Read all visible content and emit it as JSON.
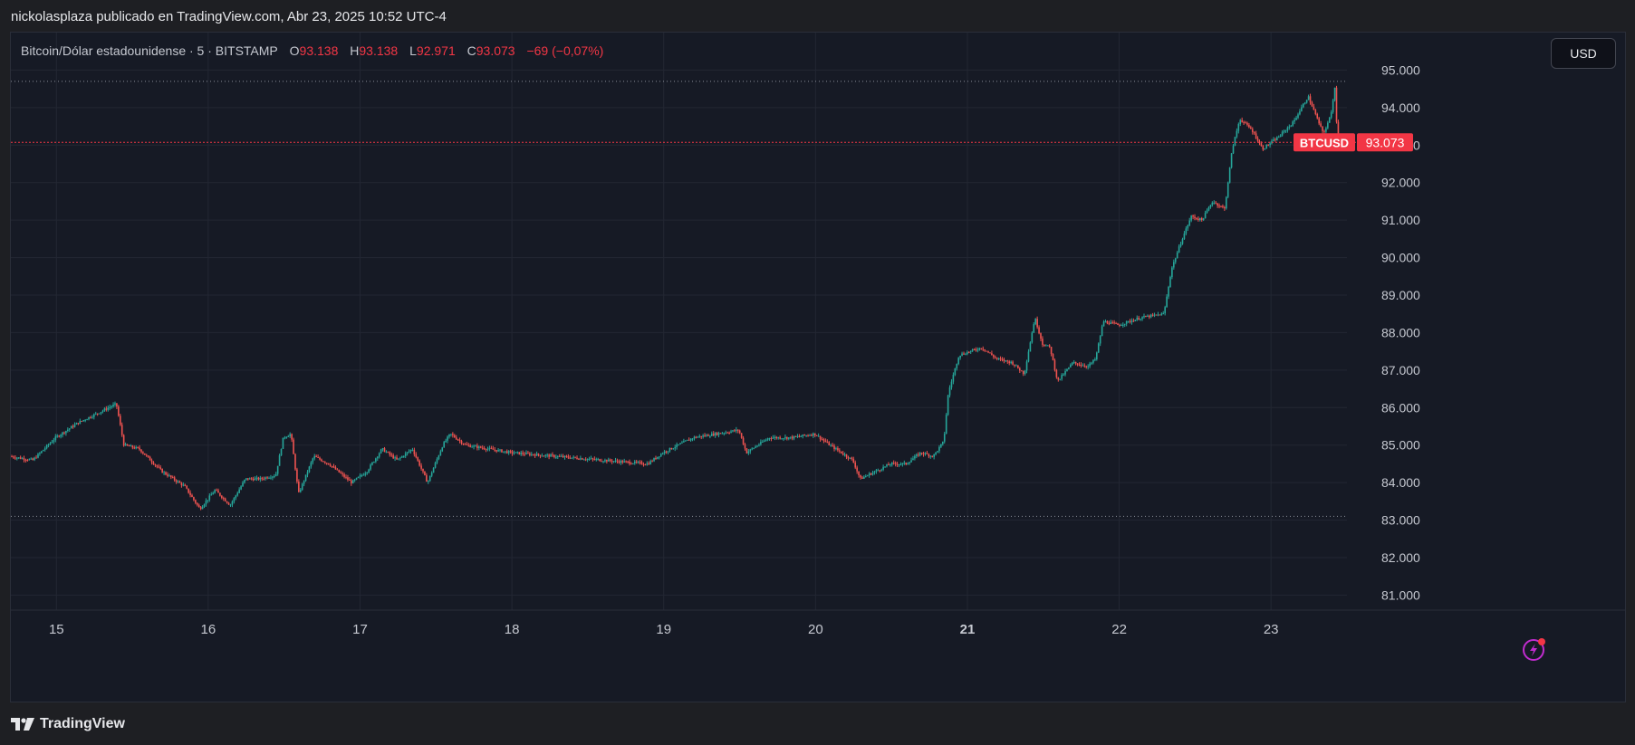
{
  "header": {
    "publish_line": "nickolasplaza publicado en TradingView.com, Abr 23, 2025 10:52 UTC-4"
  },
  "legend": {
    "symbol": "Bitcoin/Dólar estadounidense · 5 · BITSTAMP",
    "open_label": "O",
    "open": "93.138",
    "high_label": "H",
    "high": "93.138",
    "low_label": "L",
    "low": "92.971",
    "close_label": "C",
    "close": "93.073",
    "change": "−69 (−0,07%)"
  },
  "toolbar": {
    "currency_label": "USD",
    "alert_icon": "lightning-icon"
  },
  "footer": {
    "brand": "TradingView",
    "logo_icon": "tradingview-logo-icon"
  },
  "colors": {
    "up": "#26a69a",
    "down": "#ef5350",
    "price_line": "#f23645",
    "background": "#161a25",
    "grid": "#232733",
    "text": "#c5c8d0"
  },
  "chart_data": {
    "type": "candlestick",
    "symbol": "BTCUSD",
    "interval": "5",
    "exchange": "BITSTAMP",
    "x_ticks": [
      {
        "label": "15",
        "day": 15,
        "bold": false
      },
      {
        "label": "16",
        "day": 16,
        "bold": false
      },
      {
        "label": "17",
        "day": 17,
        "bold": false
      },
      {
        "label": "18",
        "day": 18,
        "bold": false
      },
      {
        "label": "19",
        "day": 19,
        "bold": false
      },
      {
        "label": "20",
        "day": 20,
        "bold": false
      },
      {
        "label": "21",
        "day": 21,
        "bold": true
      },
      {
        "label": "22",
        "day": 22,
        "bold": false
      },
      {
        "label": "23",
        "day": 23,
        "bold": false
      }
    ],
    "y_ticks": [
      {
        "label": "95.000",
        "value": 95000
      },
      {
        "label": "94.000",
        "value": 94000
      },
      {
        "label": "93.000",
        "value": 93000
      },
      {
        "label": "92.000",
        "value": 92000
      },
      {
        "label": "91.000",
        "value": 91000
      },
      {
        "label": "90.000",
        "value": 90000
      },
      {
        "label": "89.000",
        "value": 89000
      },
      {
        "label": "88.000",
        "value": 88000
      },
      {
        "label": "87.000",
        "value": 87000
      },
      {
        "label": "86.000",
        "value": 86000
      },
      {
        "label": "85.000",
        "value": 85000
      },
      {
        "label": "84.000",
        "value": 84000
      },
      {
        "label": "83.000",
        "value": 83000
      },
      {
        "label": "82.000",
        "value": 82000
      },
      {
        "label": "81.000",
        "value": 81000
      }
    ],
    "ylim": [
      80600,
      96000
    ],
    "xlim": [
      14.7,
      23.5
    ],
    "grid": true,
    "range_high_line": 94700,
    "range_low_line": 83100,
    "last_price": 93073,
    "last_price_label": "93.073",
    "symbol_tag": "BTCUSD",
    "price_path": [
      [
        14.7,
        84700
      ],
      [
        14.85,
        84600
      ],
      [
        15.0,
        85200
      ],
      [
        15.15,
        85600
      ],
      [
        15.3,
        85900
      ],
      [
        15.4,
        86100
      ],
      [
        15.45,
        85000
      ],
      [
        15.55,
        84900
      ],
      [
        15.7,
        84300
      ],
      [
        15.85,
        83900
      ],
      [
        15.95,
        83300
      ],
      [
        16.05,
        83800
      ],
      [
        16.15,
        83400
      ],
      [
        16.25,
        84100
      ],
      [
        16.35,
        84100
      ],
      [
        16.45,
        84200
      ],
      [
        16.5,
        85200
      ],
      [
        16.55,
        85300
      ],
      [
        16.6,
        83700
      ],
      [
        16.7,
        84700
      ],
      [
        16.8,
        84500
      ],
      [
        16.95,
        84000
      ],
      [
        17.05,
        84300
      ],
      [
        17.15,
        84900
      ],
      [
        17.25,
        84600
      ],
      [
        17.35,
        84900
      ],
      [
        17.45,
        84000
      ],
      [
        17.55,
        85000
      ],
      [
        17.6,
        85300
      ],
      [
        17.7,
        85000
      ],
      [
        17.85,
        84900
      ],
      [
        18.0,
        84800
      ],
      [
        18.3,
        84700
      ],
      [
        18.6,
        84600
      ],
      [
        18.9,
        84500
      ],
      [
        19.0,
        84800
      ],
      [
        19.1,
        85000
      ],
      [
        19.2,
        85200
      ],
      [
        19.35,
        85300
      ],
      [
        19.5,
        85400
      ],
      [
        19.55,
        84800
      ],
      [
        19.7,
        85200
      ],
      [
        19.85,
        85200
      ],
      [
        20.0,
        85300
      ],
      [
        20.1,
        85000
      ],
      [
        20.25,
        84600
      ],
      [
        20.3,
        84100
      ],
      [
        20.4,
        84300
      ],
      [
        20.5,
        84500
      ],
      [
        20.6,
        84500
      ],
      [
        20.7,
        84800
      ],
      [
        20.78,
        84700
      ],
      [
        20.85,
        85100
      ],
      [
        20.88,
        86400
      ],
      [
        20.95,
        87400
      ],
      [
        21.1,
        87600
      ],
      [
        21.2,
        87300
      ],
      [
        21.3,
        87200
      ],
      [
        21.38,
        86900
      ],
      [
        21.45,
        88400
      ],
      [
        21.5,
        87700
      ],
      [
        21.55,
        87600
      ],
      [
        21.6,
        86700
      ],
      [
        21.7,
        87200
      ],
      [
        21.8,
        87100
      ],
      [
        21.85,
        87300
      ],
      [
        21.9,
        88300
      ],
      [
        22.0,
        88200
      ],
      [
        22.15,
        88400
      ],
      [
        22.3,
        88500
      ],
      [
        22.35,
        89700
      ],
      [
        22.42,
        90500
      ],
      [
        22.48,
        91100
      ],
      [
        22.55,
        91000
      ],
      [
        22.62,
        91500
      ],
      [
        22.7,
        91300
      ],
      [
        22.75,
        92900
      ],
      [
        22.8,
        93700
      ],
      [
        22.88,
        93400
      ],
      [
        22.95,
        92900
      ],
      [
        23.05,
        93200
      ],
      [
        23.15,
        93600
      ],
      [
        23.25,
        94300
      ],
      [
        23.3,
        93800
      ],
      [
        23.35,
        93300
      ],
      [
        23.4,
        93800
      ],
      [
        23.43,
        94700
      ],
      [
        23.44,
        93138
      ],
      [
        23.46,
        93073
      ]
    ]
  }
}
